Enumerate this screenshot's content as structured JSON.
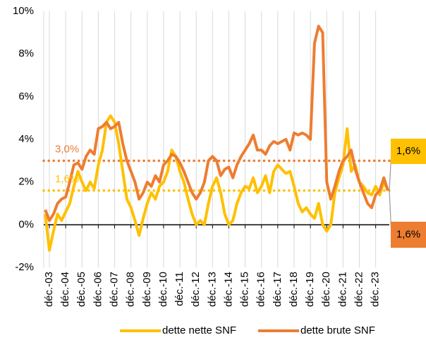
{
  "chart_data": {
    "type": "line",
    "categories": [
      null,
      "déc.-03",
      null,
      null,
      null,
      "déc.-04",
      null,
      null,
      null,
      "déc.-05",
      null,
      null,
      null,
      "déc.-06",
      null,
      null,
      null,
      "déc.-07",
      null,
      null,
      null,
      "déc.-08",
      null,
      null,
      null,
      "déc.-09",
      null,
      null,
      null,
      "déc.-10",
      null,
      null,
      null,
      "déc.-11",
      null,
      null,
      null,
      "déc.-12",
      null,
      null,
      null,
      "déc.-13",
      null,
      null,
      null,
      "déc.-14",
      null,
      null,
      null,
      "déc.-15",
      null,
      null,
      null,
      "déc.-16",
      null,
      null,
      null,
      "déc.-17",
      null,
      null,
      null,
      "déc.-18",
      null,
      null,
      null,
      "déc.-19",
      null,
      null,
      null,
      "déc.-20",
      null,
      null,
      null,
      "déc.-21",
      null,
      null,
      null,
      "déc.-22",
      null,
      null,
      null,
      "déc.-23",
      null,
      null,
      null
    ],
    "series": [
      {
        "name": "dette nette SNF",
        "color": "#FFC000",
        "values": [
          0.5,
          -1.2,
          -0.3,
          0.5,
          0.2,
          0.6,
          1.0,
          1.8,
          2.5,
          2.0,
          1.6,
          2.0,
          1.7,
          2.8,
          3.5,
          4.8,
          5.1,
          4.8,
          3.8,
          2.5,
          1.2,
          0.8,
          0.2,
          -0.5,
          0.3,
          1.0,
          1.5,
          1.2,
          1.8,
          2.0,
          2.5,
          3.5,
          3.2,
          2.5,
          2.0,
          1.2,
          0.5,
          0.0,
          0.2,
          0.0,
          1.0,
          1.8,
          2.2,
          1.5,
          0.5,
          0.0,
          0.2,
          1.0,
          1.5,
          1.8,
          1.7,
          2.2,
          1.5,
          1.8,
          2.3,
          1.5,
          2.5,
          2.8,
          2.6,
          2.4,
          2.5,
          1.8,
          1.0,
          0.6,
          0.8,
          0.5,
          0.3,
          1.0,
          0.0,
          -0.3,
          0.0,
          1.5,
          2.2,
          2.8,
          4.5,
          2.5,
          2.8,
          2.0,
          1.8,
          1.5,
          1.4,
          1.8,
          1.4,
          2.0,
          1.6
        ]
      },
      {
        "name": "dette brute SNF",
        "color": "#ED7D31",
        "values": [
          0.7,
          0.2,
          0.5,
          1.0,
          1.2,
          1.3,
          2.0,
          2.8,
          2.9,
          2.6,
          3.2,
          3.5,
          3.3,
          4.5,
          4.6,
          4.8,
          4.5,
          4.6,
          4.8,
          3.8,
          3.0,
          2.5,
          2.0,
          1.2,
          1.5,
          2.0,
          1.8,
          2.3,
          2.0,
          2.8,
          3.0,
          3.3,
          3.2,
          2.9,
          2.5,
          2.0,
          1.5,
          1.2,
          1.5,
          2.0,
          3.0,
          3.2,
          3.0,
          2.3,
          2.6,
          2.7,
          2.2,
          2.8,
          3.2,
          3.5,
          3.8,
          4.2,
          3.5,
          3.5,
          3.3,
          3.7,
          3.9,
          3.8,
          3.9,
          4.0,
          3.5,
          4.3,
          4.2,
          4.3,
          4.2,
          4.0,
          8.5,
          9.3,
          9.0,
          2.0,
          1.2,
          1.8,
          2.5,
          3.0,
          3.2,
          3.5,
          2.6,
          2.0,
          1.5,
          1.0,
          0.8,
          1.4,
          1.6,
          2.2,
          1.6
        ]
      }
    ],
    "ylim": [
      -2,
      10
    ],
    "yticks": [
      {
        "value": -2,
        "label": "-2%"
      },
      {
        "value": 0,
        "label": "0%"
      },
      {
        "value": 2,
        "label": "2%"
      },
      {
        "value": 4,
        "label": "4%"
      },
      {
        "value": 6,
        "label": "6%"
      },
      {
        "value": 8,
        "label": "8%"
      },
      {
        "value": 10,
        "label": "10%"
      }
    ],
    "reference_lines": [
      {
        "value": 3.0,
        "label": "3,0%",
        "color": "#ED7D31"
      },
      {
        "value": 1.6,
        "label": "1,6%",
        "color": "#FFC000"
      }
    ],
    "callouts": [
      {
        "value": 1.6,
        "label": "1,6%",
        "color": "#FFC000"
      },
      {
        "value": 1.6,
        "label": "1,6%",
        "color": "#ED7D31"
      }
    ],
    "grid": true,
    "legend": "bottom"
  }
}
